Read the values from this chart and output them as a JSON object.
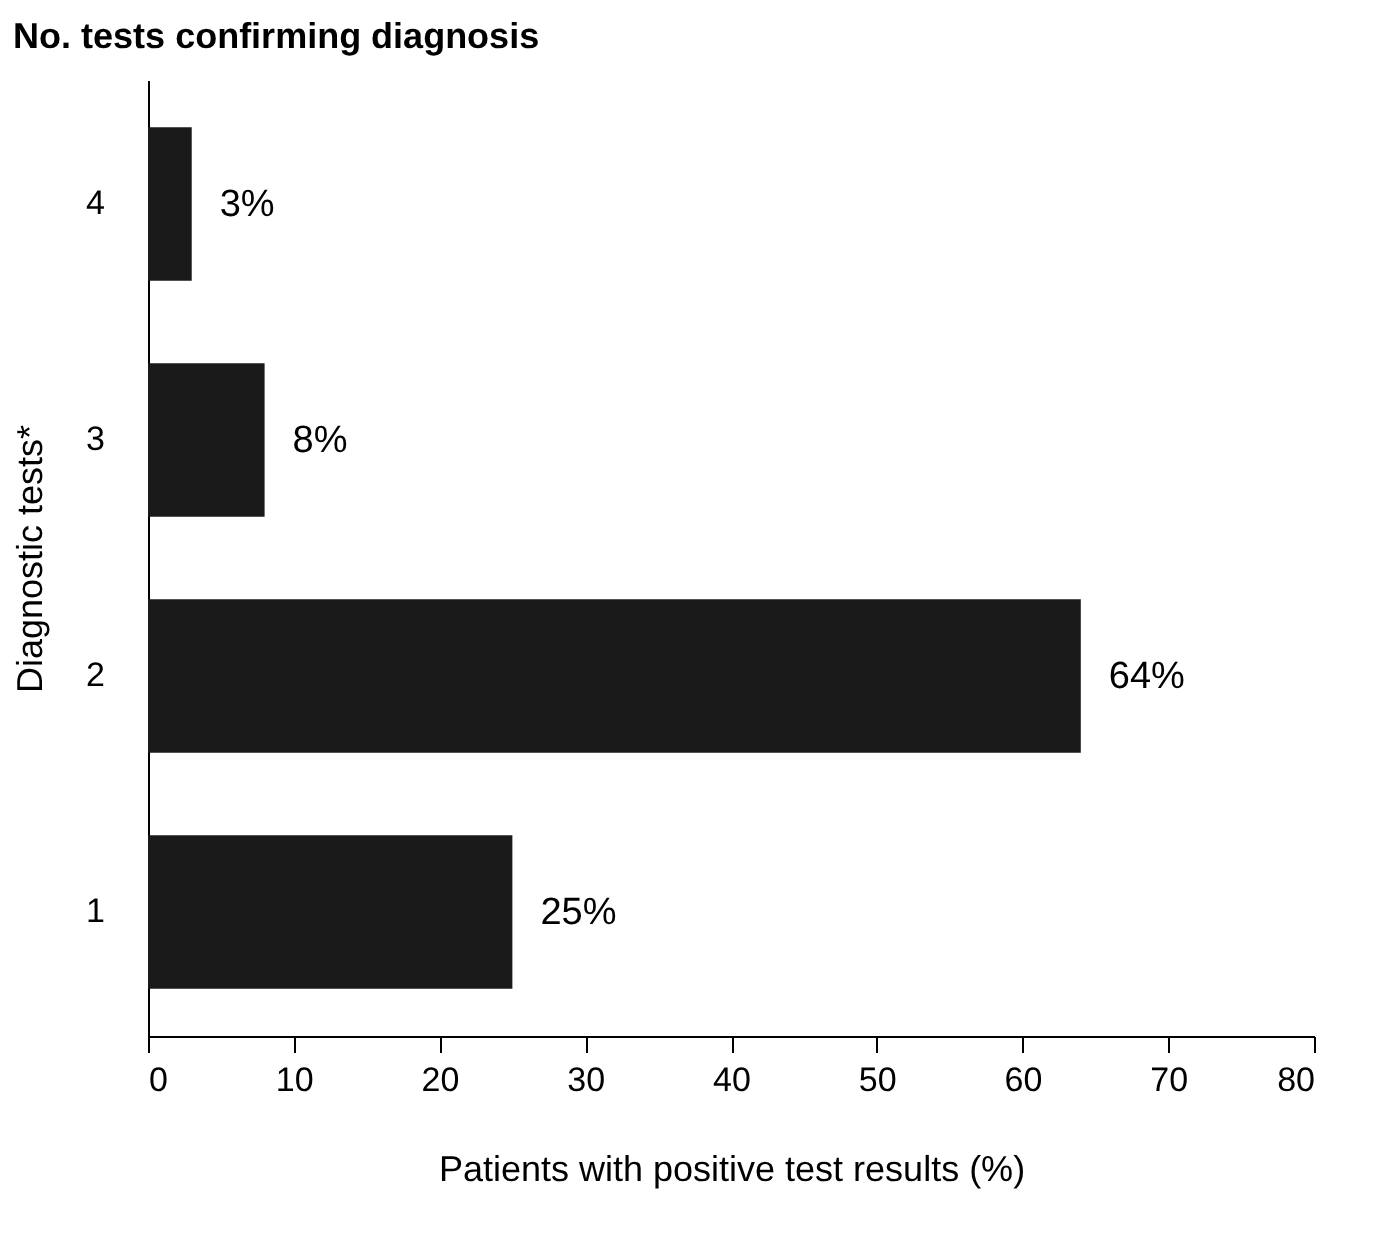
{
  "chart_data": {
    "type": "bar",
    "orientation": "horizontal",
    "title": "No. tests confirming diagnosis",
    "xlabel": "Patients with positive test results (%)",
    "ylabel": "Diagnostic tests*",
    "categories": [
      "4",
      "3",
      "2",
      "1"
    ],
    "values": [
      3,
      8,
      64,
      25
    ],
    "value_labels": [
      "3%",
      "8%",
      "64%",
      "25%"
    ],
    "color": "#1a1a1a",
    "xlim": [
      0,
      80
    ],
    "xticks": [
      0,
      10,
      20,
      30,
      40,
      50,
      60,
      70,
      80
    ],
    "grid": false
  }
}
